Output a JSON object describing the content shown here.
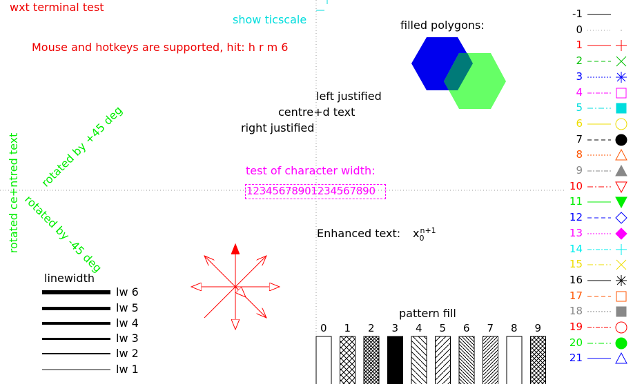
{
  "title": "wxt  terminal test",
  "ticscale": "show ticscale",
  "hotkeys": "Mouse and hotkeys are supported, hit: h r m 6",
  "polygons": {
    "label": "filled polygons:",
    "hex1_color": "#0000ee",
    "hex2_color": "#66ff66",
    "overlap_color": "#007a78"
  },
  "justify": {
    "left": "left justified",
    "centre": "centre+d text",
    "right": "right justified"
  },
  "rotated": {
    "centred": "rotated ce+ntred text",
    "plus45": "rotated by +45 deg",
    "minus45": "rotated by -45 deg"
  },
  "charwidth": {
    "label": "test of character width:",
    "digits": "12345678901234567890"
  },
  "enhanced": {
    "label": "Enhanced text:",
    "base": "x",
    "sub": "0",
    "sup": "n+1"
  },
  "linewidth": {
    "title": "linewidth",
    "items": [
      "lw 6",
      "lw 5",
      "lw 4",
      "lw 3",
      "lw 2",
      "lw 1"
    ]
  },
  "pattern": {
    "title": "pattern fill",
    "labels": [
      "0",
      "1",
      "2",
      "3",
      "4",
      "5",
      "6",
      "7",
      "8",
      "9"
    ]
  },
  "legend": [
    {
      "label": "-1",
      "color": "#000000",
      "dash": "",
      "marker": "none"
    },
    {
      "label": "0",
      "color": "#a0a0a0",
      "dash": "1,3",
      "marker": "dot"
    },
    {
      "label": "1",
      "color": "#ff0000",
      "dash": "",
      "marker": "plus"
    },
    {
      "label": "2",
      "color": "#00c000",
      "dash": "6,4",
      "marker": "cross"
    },
    {
      "label": "3",
      "color": "#0000ff",
      "dash": "2,2",
      "marker": "star"
    },
    {
      "label": "4",
      "color": "#ff00ff",
      "dash": "6,2,2,2",
      "marker": "box"
    },
    {
      "label": "5",
      "color": "#00dddd",
      "dash": "8,3,2,3",
      "marker": "fbox"
    },
    {
      "label": "6",
      "color": "#eedd00",
      "dash": "",
      "marker": "circle"
    },
    {
      "label": "7",
      "color": "#000000",
      "dash": "6,4",
      "marker": "fcircle"
    },
    {
      "label": "8",
      "color": "#ff5500",
      "dash": "2,2",
      "marker": "tri"
    },
    {
      "label": "9",
      "color": "#888888",
      "dash": "6,2,2,2",
      "marker": "ftri"
    },
    {
      "label": "10",
      "color": "#ff0000",
      "dash": "8,3,2,3",
      "marker": "itri"
    },
    {
      "label": "11",
      "color": "#00ee00",
      "dash": "",
      "marker": "fitri"
    },
    {
      "label": "12",
      "color": "#0000ff",
      "dash": "6,4",
      "marker": "diamond"
    },
    {
      "label": "13",
      "color": "#ff00ff",
      "dash": "2,2",
      "marker": "fdiamond"
    },
    {
      "label": "14",
      "color": "#00eeee",
      "dash": "6,2,2,2",
      "marker": "plus"
    },
    {
      "label": "15",
      "color": "#eedd00",
      "dash": "8,3,2,3",
      "marker": "cross"
    },
    {
      "label": "16",
      "color": "#000000",
      "dash": "",
      "marker": "star"
    },
    {
      "label": "17",
      "color": "#ff5500",
      "dash": "6,4",
      "marker": "box"
    },
    {
      "label": "18",
      "color": "#888888",
      "dash": "2,2",
      "marker": "fbox"
    },
    {
      "label": "19",
      "color": "#ff0000",
      "dash": "6,2,2,2",
      "marker": "circle"
    },
    {
      "label": "20",
      "color": "#00ee00",
      "dash": "8,3,2,3",
      "marker": "fcircle"
    },
    {
      "label": "21",
      "color": "#0000ff",
      "dash": "",
      "marker": "tri"
    }
  ]
}
